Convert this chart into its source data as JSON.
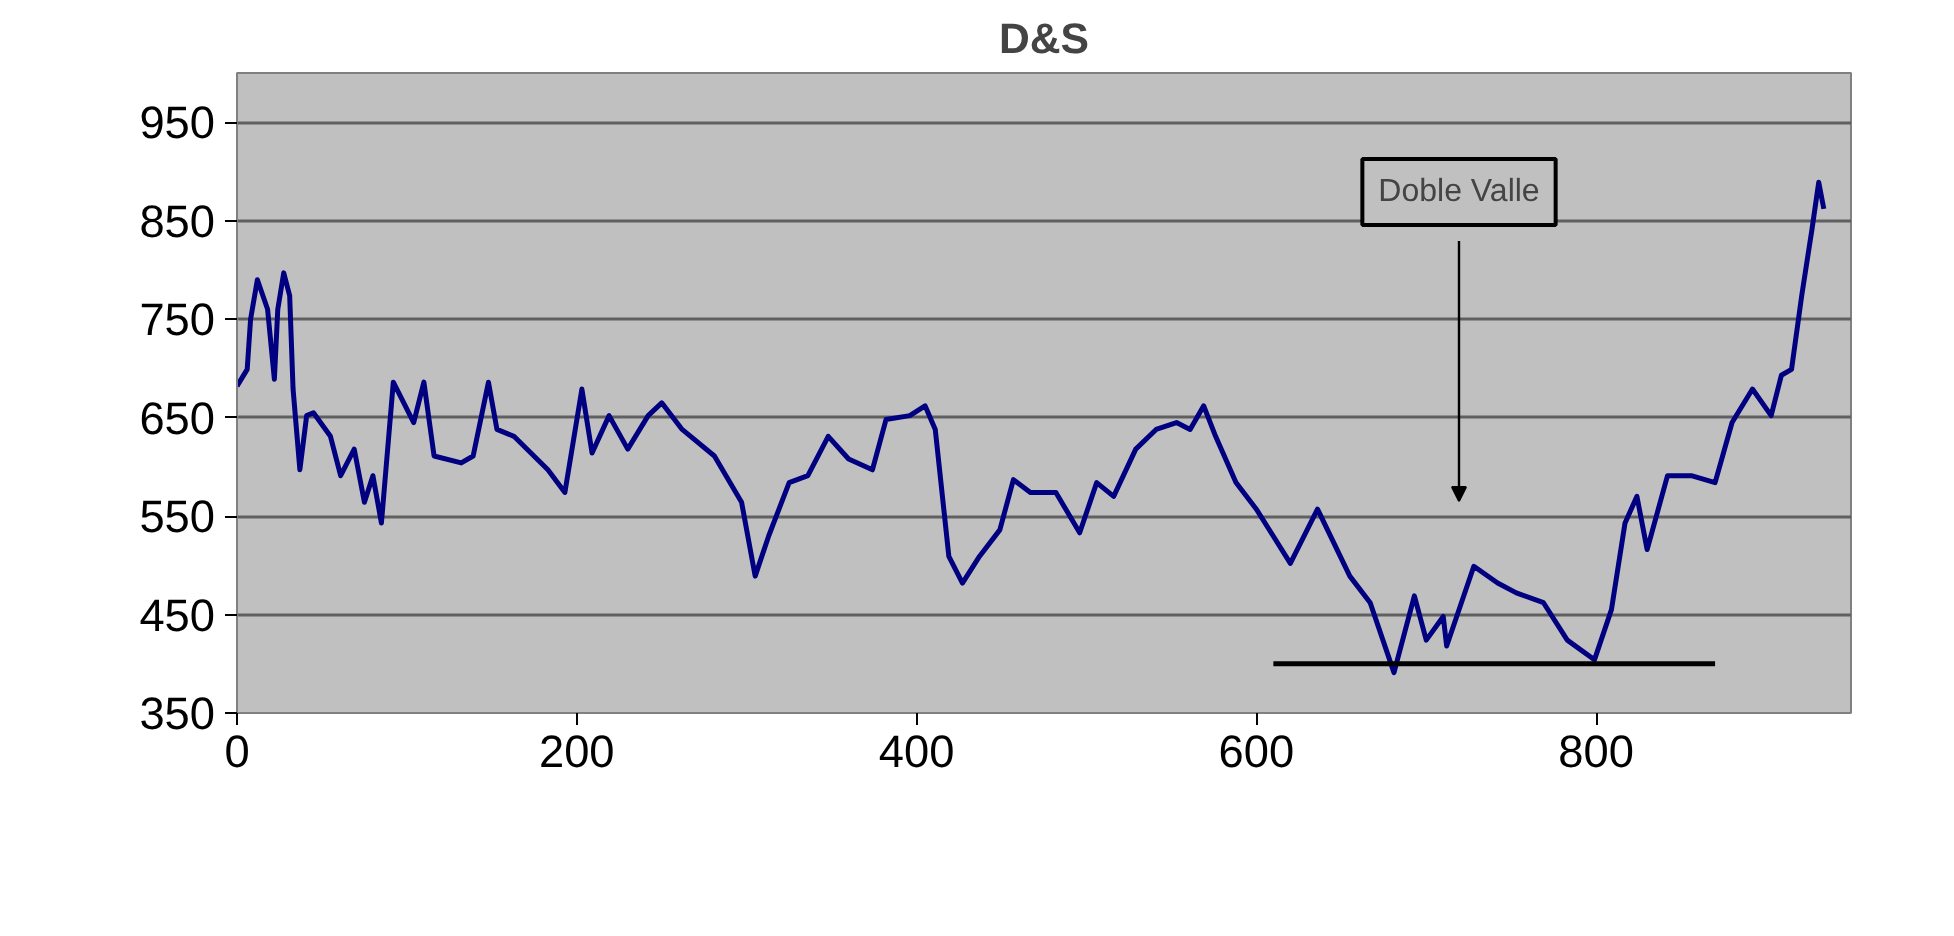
{
  "chart_data": {
    "type": "line",
    "title": "D&S",
    "xlim": [
      0,
      950
    ],
    "ylim": [
      350,
      1000
    ],
    "xticks": [
      0,
      200,
      400,
      600,
      800
    ],
    "yticks": [
      350,
      450,
      550,
      650,
      750,
      850,
      950
    ],
    "grid": "y",
    "annotations": [
      "Doble Valle"
    ],
    "series": [
      {
        "color": "#000080",
        "x": [
          0,
          6,
          8,
          12,
          18,
          22,
          24,
          27.5,
          31,
          33,
          37,
          41,
          45,
          55,
          61,
          69,
          75,
          80,
          85,
          92,
          104,
          110,
          116,
          132,
          139,
          148,
          153,
          163,
          183,
          193,
          203,
          209,
          219,
          230,
          242,
          250,
          262,
          281,
          297,
          305,
          313,
          325,
          336,
          348,
          360,
          374,
          382,
          396,
          405,
          411,
          419,
          427,
          437,
          449,
          457,
          467,
          482,
          496,
          506,
          516,
          529,
          541,
          553,
          561,
          569,
          576,
          588,
          600,
          620,
          636,
          655,
          667,
          681,
          693,
          700,
          710,
          712,
          728,
          742,
          753,
          769,
          783,
          799,
          809,
          817,
          824,
          830,
          842,
          856,
          870,
          880,
          892,
          903,
          909,
          915,
          921,
          927,
          931,
          934
        ],
        "values": [
          682,
          699,
          750,
          790,
          760,
          689,
          760,
          797,
          774,
          679,
          597,
          652,
          655,
          631,
          591,
          618,
          564,
          591,
          543,
          686,
          645,
          686,
          611,
          604,
          611,
          686,
          638,
          631,
          597,
          574,
          679,
          614,
          652,
          618,
          652,
          665,
          638,
          611,
          564,
          489,
          530,
          584,
          591,
          631,
          608,
          597,
          648,
          652,
          662,
          638,
          509,
          482,
          509,
          536,
          587,
          574,
          574,
          533,
          584,
          570,
          618,
          638,
          645,
          638,
          662,
          631,
          584,
          557,
          502,
          557,
          489,
          462,
          391,
          469,
          424,
          448,
          418,
          499,
          482,
          472,
          462,
          424,
          404,
          455,
          543,
          570,
          516,
          591,
          591,
          584,
          645,
          679,
          652,
          693,
          699,
          774,
          841,
          889,
          862
        ]
      },
      {
        "color": "#000000",
        "x": [
          610,
          870
        ],
        "values": [
          400,
          400
        ]
      }
    ]
  }
}
